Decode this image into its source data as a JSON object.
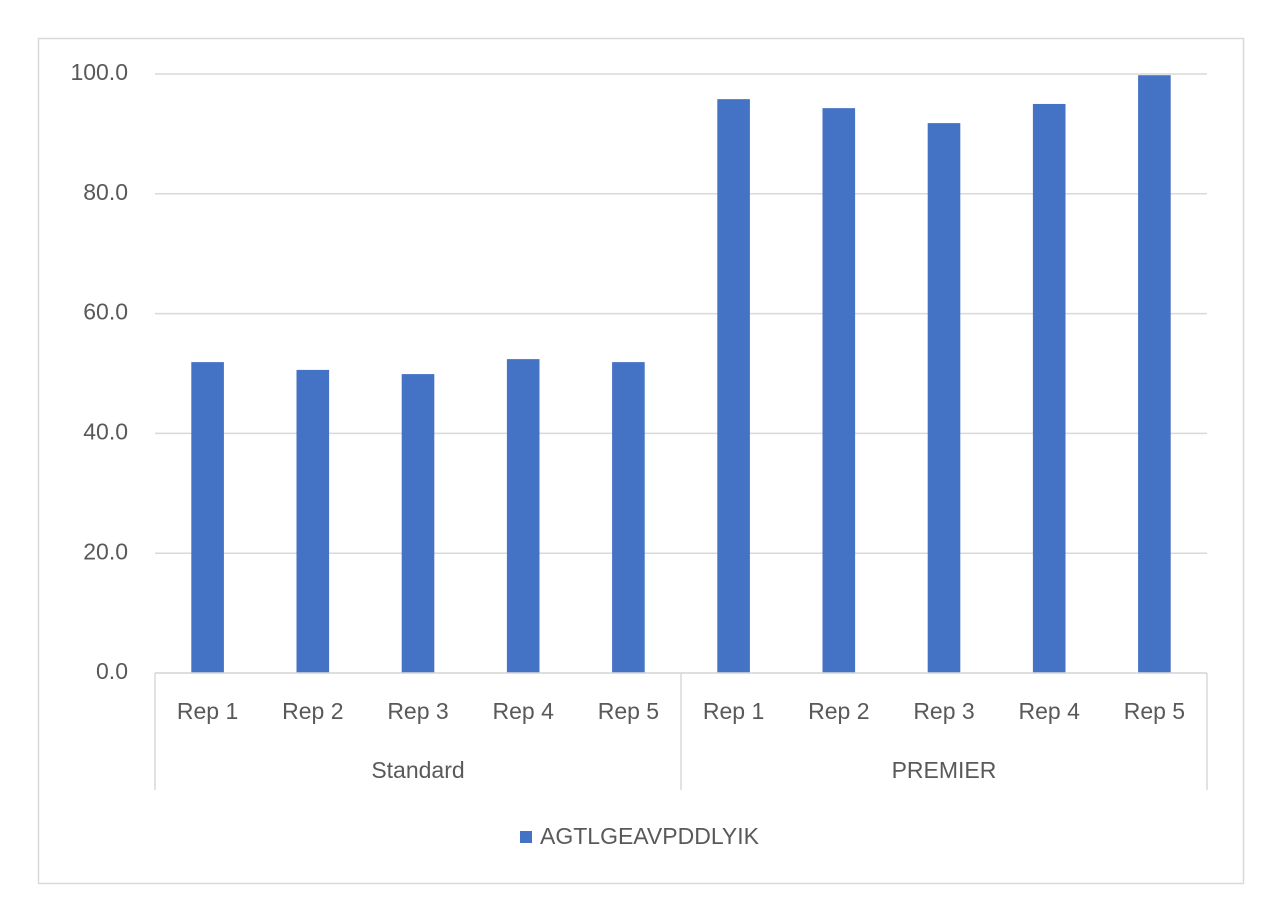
{
  "chart_data": {
    "type": "bar",
    "category_groups": [
      "Standard",
      "PREMIER"
    ],
    "categories": [
      [
        "Rep 1",
        "Rep 2",
        "Rep 3",
        "Rep 4",
        "Rep 5"
      ],
      [
        "Rep 1",
        "Rep 2",
        "Rep 3",
        "Rep 4",
        "Rep 5"
      ]
    ],
    "series": [
      {
        "name": "AGTLGEAVPDDLYIK",
        "color": "#4472c4",
        "values": [
          [
            51.9,
            50.6,
            49.9,
            52.4,
            51.9
          ],
          [
            95.8,
            94.3,
            91.8,
            95.0,
            99.8
          ]
        ]
      }
    ],
    "ylim": [
      0,
      100
    ],
    "yticks": [
      {
        "value": 0,
        "label": "0.0"
      },
      {
        "value": 20,
        "label": "20.0"
      },
      {
        "value": 40,
        "label": "40.0"
      },
      {
        "value": 60,
        "label": "60.0"
      },
      {
        "value": 80,
        "label": "80.0"
      },
      {
        "value": 100,
        "label": "100.0"
      }
    ],
    "grid": true,
    "legend": "bottom"
  }
}
